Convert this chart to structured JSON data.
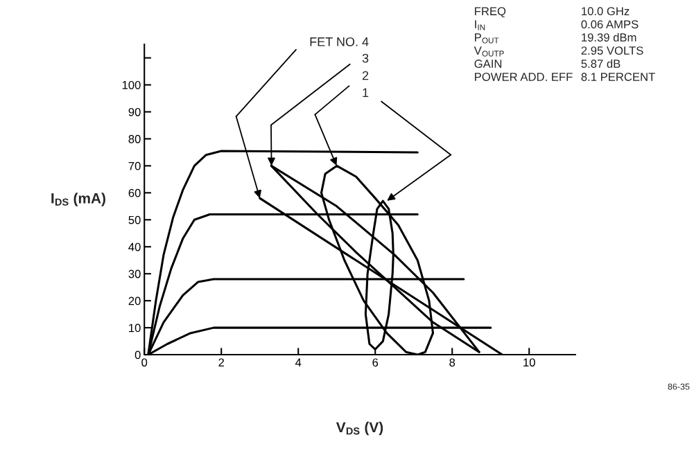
{
  "chart_data": {
    "type": "line",
    "xlabel": "V$_{DS}$ (V)",
    "ylabel": "I$_{DS}$ (mA)",
    "xlim": [
      0,
      11.2
    ],
    "xticks": [
      0,
      2,
      4,
      6,
      8,
      10
    ],
    "ylim": [
      0,
      115
    ],
    "yticks": [
      0,
      10,
      20,
      30,
      40,
      50,
      60,
      70,
      80,
      90,
      100,
      {
        "value": 110,
        "label": null
      }
    ],
    "grid": false,
    "marker": "none",
    "line_style": "solid",
    "legend": false,
    "series": [
      {
        "color": "#000000",
        "x": [
          0.1,
          0.3,
          0.5,
          0.75,
          1.0,
          1.3,
          1.6,
          2.0,
          7.1
        ],
        "values": [
          0,
          20,
          37,
          51,
          61,
          70,
          74,
          75.5,
          75
        ]
      },
      {
        "color": "#000000",
        "x": [
          0.1,
          0.4,
          0.7,
          1.0,
          1.3,
          1.7,
          7.1
        ],
        "values": [
          0,
          18,
          32,
          43,
          50,
          52,
          52
        ]
      },
      {
        "color": "#000000",
        "x": [
          0.1,
          0.5,
          1.0,
          1.4,
          1.8,
          8.3
        ],
        "values": [
          0,
          12,
          22,
          27,
          28,
          28
        ]
      },
      {
        "color": "#000000",
        "x": [
          0.1,
          0.6,
          1.2,
          1.8,
          9.0
        ],
        "values": [
          0,
          4,
          8,
          10,
          10
        ]
      },
      {
        "color": "#000000",
        "x": [
          3.0,
          9.3
        ],
        "values": [
          58,
          0
        ]
      },
      {
        "color": "#000000",
        "x": [
          3.3,
          5.0,
          6.5,
          7.5,
          8.7
        ],
        "values": [
          70,
          55,
          37,
          23,
          1
        ]
      },
      {
        "color": "#000000",
        "x": [
          3.3,
          4.5,
          5.5,
          6.5,
          7.5,
          8.7
        ],
        "values": [
          70,
          52,
          38,
          25,
          12,
          1
        ]
      },
      {
        "color": "#000000",
        "x": [
          4.6,
          4.7,
          5.0,
          5.5,
          6.0,
          6.6,
          7.1,
          7.4,
          7.5
        ],
        "values": [
          60,
          67,
          70,
          66,
          58,
          48,
          35,
          20,
          8
        ]
      },
      {
        "color": "#000000",
        "x": [
          4.6,
          4.8,
          5.2,
          5.7,
          6.3,
          6.8,
          7.1,
          7.3,
          7.5
        ],
        "values": [
          60,
          50,
          35,
          20,
          8,
          1,
          0,
          1,
          8
        ]
      },
      {
        "color": "#000000",
        "x": [
          5.75,
          5.8,
          5.95,
          6.05,
          6.2,
          6.35,
          6.45,
          6.47,
          null,
          5.75,
          5.85,
          6.0,
          6.2,
          6.35,
          6.45,
          6.47
        ],
        "values": [
          15,
          30,
          45,
          54,
          57,
          54,
          45,
          37,
          null,
          15,
          4,
          2,
          5,
          15,
          30,
          37
        ]
      }
    ],
    "annotations": [
      "FET NO. 4",
      "3",
      "2",
      "1",
      "FREQ",
      "10.0 GHz",
      "I$_{IN}$",
      "0.06 AMPS",
      "P$_{OUT}$",
      "19.39 dBm",
      "V$_{OUTP}$",
      "2.95 VOLTS",
      "GAIN",
      "5.87 dB",
      "POWER ADD. EFF",
      "8.1 PERCENT",
      "86-35"
    ]
  }
}
